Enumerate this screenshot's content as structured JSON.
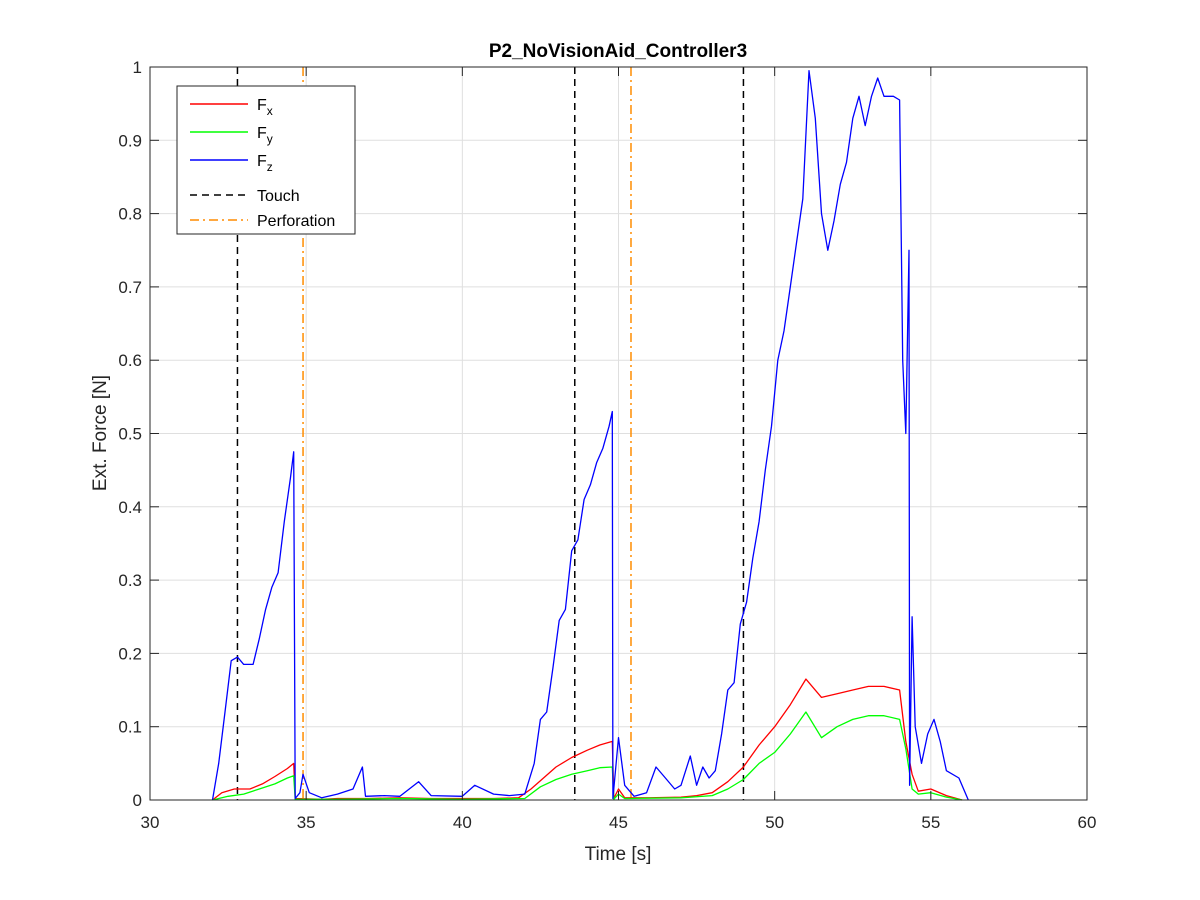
{
  "chart_data": {
    "type": "line",
    "title": "P2_NoVisionAid_Controller3",
    "xlabel": "Time [s]",
    "ylabel": "Ext. Force [N]",
    "xlim": [
      30,
      60
    ],
    "ylim": [
      0,
      1
    ],
    "xticks": [
      "30",
      "35",
      "40",
      "45",
      "50",
      "55",
      "60"
    ],
    "yticks": [
      "0",
      "0.1",
      "0.2",
      "0.3",
      "0.4",
      "0.5",
      "0.6",
      "0.7",
      "0.8",
      "0.9",
      "1"
    ],
    "grid": true,
    "legend_position": "top-left",
    "series": [
      {
        "name": "F",
        "subscript": "x",
        "color": "#ff0000",
        "style": "solid",
        "points": [
          [
            32.0,
            0
          ],
          [
            32.3,
            0.01
          ],
          [
            32.7,
            0.015
          ],
          [
            33.2,
            0.015
          ],
          [
            33.6,
            0.022
          ],
          [
            34.0,
            0.032
          ],
          [
            34.4,
            0.043
          ],
          [
            34.6,
            0.05
          ],
          [
            34.65,
            0.002
          ],
          [
            35.5,
            0.001
          ],
          [
            36.0,
            0.002
          ],
          [
            37.0,
            0.002
          ],
          [
            38.0,
            0.003
          ],
          [
            39.0,
            0.002
          ],
          [
            40.0,
            0.002
          ],
          [
            41.0,
            0.002
          ],
          [
            41.8,
            0.003
          ],
          [
            42.2,
            0.015
          ],
          [
            42.6,
            0.03
          ],
          [
            43.0,
            0.045
          ],
          [
            43.5,
            0.058
          ],
          [
            44.0,
            0.068
          ],
          [
            44.4,
            0.075
          ],
          [
            44.8,
            0.08
          ],
          [
            44.85,
            0.002
          ],
          [
            45.0,
            0.015
          ],
          [
            45.2,
            0.003
          ],
          [
            46.0,
            0.003
          ],
          [
            47.0,
            0.004
          ],
          [
            47.5,
            0.006
          ],
          [
            48.0,
            0.01
          ],
          [
            48.5,
            0.025
          ],
          [
            49.0,
            0.045
          ],
          [
            49.5,
            0.075
          ],
          [
            50.0,
            0.1
          ],
          [
            50.5,
            0.13
          ],
          [
            51.0,
            0.165
          ],
          [
            51.5,
            0.14
          ],
          [
            52.0,
            0.145
          ],
          [
            52.5,
            0.15
          ],
          [
            53.0,
            0.155
          ],
          [
            53.5,
            0.155
          ],
          [
            54.0,
            0.15
          ],
          [
            54.2,
            0.08
          ],
          [
            54.4,
            0.035
          ],
          [
            54.6,
            0.012
          ],
          [
            55.0,
            0.015
          ],
          [
            55.5,
            0.006
          ],
          [
            56.0,
            0
          ]
        ]
      },
      {
        "name": "F",
        "subscript": "y",
        "color": "#00ff00",
        "style": "solid",
        "points": [
          [
            32.0,
            0
          ],
          [
            32.5,
            0.005
          ],
          [
            33.0,
            0.008
          ],
          [
            33.5,
            0.015
          ],
          [
            34.0,
            0.022
          ],
          [
            34.4,
            0.03
          ],
          [
            34.6,
            0.033
          ],
          [
            34.65,
            0.001
          ],
          [
            36.0,
            0.001
          ],
          [
            38.0,
            0.002
          ],
          [
            40.0,
            0.001
          ],
          [
            42.0,
            0.002
          ],
          [
            42.5,
            0.018
          ],
          [
            43.0,
            0.028
          ],
          [
            43.5,
            0.035
          ],
          [
            44.0,
            0.04
          ],
          [
            44.4,
            0.044
          ],
          [
            44.8,
            0.045
          ],
          [
            44.85,
            0.001
          ],
          [
            45.0,
            0.008
          ],
          [
            45.2,
            0.002
          ],
          [
            47.0,
            0.003
          ],
          [
            48.0,
            0.006
          ],
          [
            48.5,
            0.015
          ],
          [
            49.0,
            0.028
          ],
          [
            49.5,
            0.05
          ],
          [
            50.0,
            0.065
          ],
          [
            50.5,
            0.09
          ],
          [
            51.0,
            0.12
          ],
          [
            51.5,
            0.085
          ],
          [
            52.0,
            0.1
          ],
          [
            52.5,
            0.11
          ],
          [
            53.0,
            0.115
          ],
          [
            53.5,
            0.115
          ],
          [
            54.0,
            0.11
          ],
          [
            54.2,
            0.07
          ],
          [
            54.4,
            0.015
          ],
          [
            54.6,
            0.008
          ],
          [
            55.0,
            0.01
          ],
          [
            55.5,
            0.004
          ],
          [
            56.0,
            0
          ]
        ]
      },
      {
        "name": "F",
        "subscript": "z",
        "color": "#0000ff",
        "style": "solid",
        "points": [
          [
            32.0,
            0
          ],
          [
            32.2,
            0.05
          ],
          [
            32.4,
            0.12
          ],
          [
            32.6,
            0.19
          ],
          [
            32.8,
            0.195
          ],
          [
            33.0,
            0.185
          ],
          [
            33.3,
            0.185
          ],
          [
            33.5,
            0.22
          ],
          [
            33.7,
            0.26
          ],
          [
            33.9,
            0.29
          ],
          [
            34.1,
            0.31
          ],
          [
            34.3,
            0.38
          ],
          [
            34.5,
            0.44
          ],
          [
            34.6,
            0.475
          ],
          [
            34.65,
            0.002
          ],
          [
            34.8,
            0.01
          ],
          [
            34.9,
            0.035
          ],
          [
            35.1,
            0.01
          ],
          [
            35.5,
            0.003
          ],
          [
            36.0,
            0.008
          ],
          [
            36.5,
            0.015
          ],
          [
            36.8,
            0.045
          ],
          [
            36.9,
            0.005
          ],
          [
            37.5,
            0.006
          ],
          [
            38.0,
            0.005
          ],
          [
            38.6,
            0.025
          ],
          [
            39.0,
            0.006
          ],
          [
            40.0,
            0.005
          ],
          [
            40.4,
            0.02
          ],
          [
            41.0,
            0.008
          ],
          [
            41.5,
            0.006
          ],
          [
            42.0,
            0.008
          ],
          [
            42.3,
            0.05
          ],
          [
            42.5,
            0.11
          ],
          [
            42.7,
            0.12
          ],
          [
            42.9,
            0.18
          ],
          [
            43.1,
            0.245
          ],
          [
            43.3,
            0.26
          ],
          [
            43.5,
            0.34
          ],
          [
            43.7,
            0.355
          ],
          [
            43.9,
            0.41
          ],
          [
            44.1,
            0.43
          ],
          [
            44.3,
            0.46
          ],
          [
            44.5,
            0.48
          ],
          [
            44.7,
            0.51
          ],
          [
            44.8,
            0.53
          ],
          [
            44.82,
            0.002
          ],
          [
            45.0,
            0.085
          ],
          [
            45.2,
            0.02
          ],
          [
            45.5,
            0.005
          ],
          [
            45.9,
            0.01
          ],
          [
            46.2,
            0.045
          ],
          [
            46.5,
            0.03
          ],
          [
            46.8,
            0.015
          ],
          [
            47.0,
            0.02
          ],
          [
            47.3,
            0.06
          ],
          [
            47.5,
            0.02
          ],
          [
            47.7,
            0.045
          ],
          [
            47.9,
            0.03
          ],
          [
            48.1,
            0.04
          ],
          [
            48.3,
            0.09
          ],
          [
            48.5,
            0.15
          ],
          [
            48.7,
            0.16
          ],
          [
            48.9,
            0.24
          ],
          [
            49.1,
            0.27
          ],
          [
            49.3,
            0.33
          ],
          [
            49.5,
            0.38
          ],
          [
            49.7,
            0.45
          ],
          [
            49.9,
            0.51
          ],
          [
            50.1,
            0.6
          ],
          [
            50.3,
            0.64
          ],
          [
            50.5,
            0.7
          ],
          [
            50.7,
            0.76
          ],
          [
            50.9,
            0.82
          ],
          [
            51.1,
            0.995
          ],
          [
            51.3,
            0.93
          ],
          [
            51.5,
            0.8
          ],
          [
            51.7,
            0.75
          ],
          [
            51.9,
            0.79
          ],
          [
            52.1,
            0.84
          ],
          [
            52.3,
            0.87
          ],
          [
            52.5,
            0.93
          ],
          [
            52.7,
            0.96
          ],
          [
            52.9,
            0.92
          ],
          [
            53.1,
            0.96
          ],
          [
            53.3,
            0.985
          ],
          [
            53.5,
            0.96
          ],
          [
            53.8,
            0.96
          ],
          [
            54.0,
            0.955
          ],
          [
            54.1,
            0.6
          ],
          [
            54.2,
            0.5
          ],
          [
            54.3,
            0.75
          ],
          [
            54.32,
            0.02
          ],
          [
            54.4,
            0.25
          ],
          [
            54.5,
            0.1
          ],
          [
            54.7,
            0.05
          ],
          [
            54.9,
            0.09
          ],
          [
            55.1,
            0.11
          ],
          [
            55.3,
            0.08
          ],
          [
            55.5,
            0.04
          ],
          [
            55.9,
            0.03
          ],
          [
            56.2,
            0
          ]
        ]
      }
    ],
    "reference_lines": [
      {
        "name": "Touch",
        "color": "#000000",
        "style": "dashed",
        "x": [
          32.8,
          43.6,
          49.0
        ]
      },
      {
        "name": "Perforation",
        "color": "#ff8c00",
        "style": "dashdot",
        "x": [
          34.9,
          45.4
        ]
      }
    ]
  }
}
